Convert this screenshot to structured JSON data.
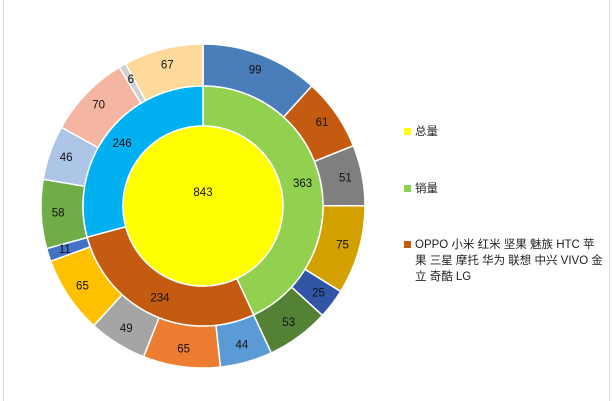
{
  "chart_data": {
    "type": "pie",
    "variant": "multi-level-donut",
    "center": {
      "name": "总量",
      "value": 843,
      "color": "#ffff00"
    },
    "middle_ring": {
      "name": "销量",
      "slices": [
        {
          "value": 363,
          "color": "#92d050"
        },
        {
          "value": 234,
          "color": "#c55a11"
        },
        {
          "value": 246,
          "color": "#00b0f0"
        }
      ]
    },
    "outer_ring": {
      "slices": [
        {
          "value": 99,
          "color": "#4a7ebb"
        },
        {
          "value": 61,
          "color": "#c55a11"
        },
        {
          "value": 51,
          "color": "#7f7f7f"
        },
        {
          "value": 75,
          "color": "#d4a000"
        },
        {
          "value": 25,
          "color": "#2f55a4"
        },
        {
          "value": 53,
          "color": "#548235"
        },
        {
          "value": 44,
          "color": "#5b9bd5"
        },
        {
          "value": 65,
          "color": "#ed7d31"
        },
        {
          "value": 49,
          "color": "#a5a5a5"
        },
        {
          "value": 65,
          "color": "#ffc000"
        },
        {
          "value": 11,
          "color": "#4472c4"
        },
        {
          "value": 58,
          "color": "#70ad47"
        },
        {
          "value": 46,
          "color": "#adc6e8"
        },
        {
          "value": 70,
          "color": "#f4b6a0"
        },
        {
          "value": 6,
          "color": "#d0d0d0"
        },
        {
          "value": 67,
          "color": "#ffd99a"
        }
      ]
    },
    "legend": {
      "placement": "right",
      "entries": [
        {
          "label": "总量",
          "color": "#ffff00"
        },
        {
          "label": "销量",
          "color": "#92d050"
        },
        {
          "label": "OPPO 小米 红米 坚果 魅族 HTC 苹果 三星 摩托 华为 联想 中兴 VIVO 金立 奇酷 LG",
          "color": "#c55a11"
        }
      ]
    }
  }
}
